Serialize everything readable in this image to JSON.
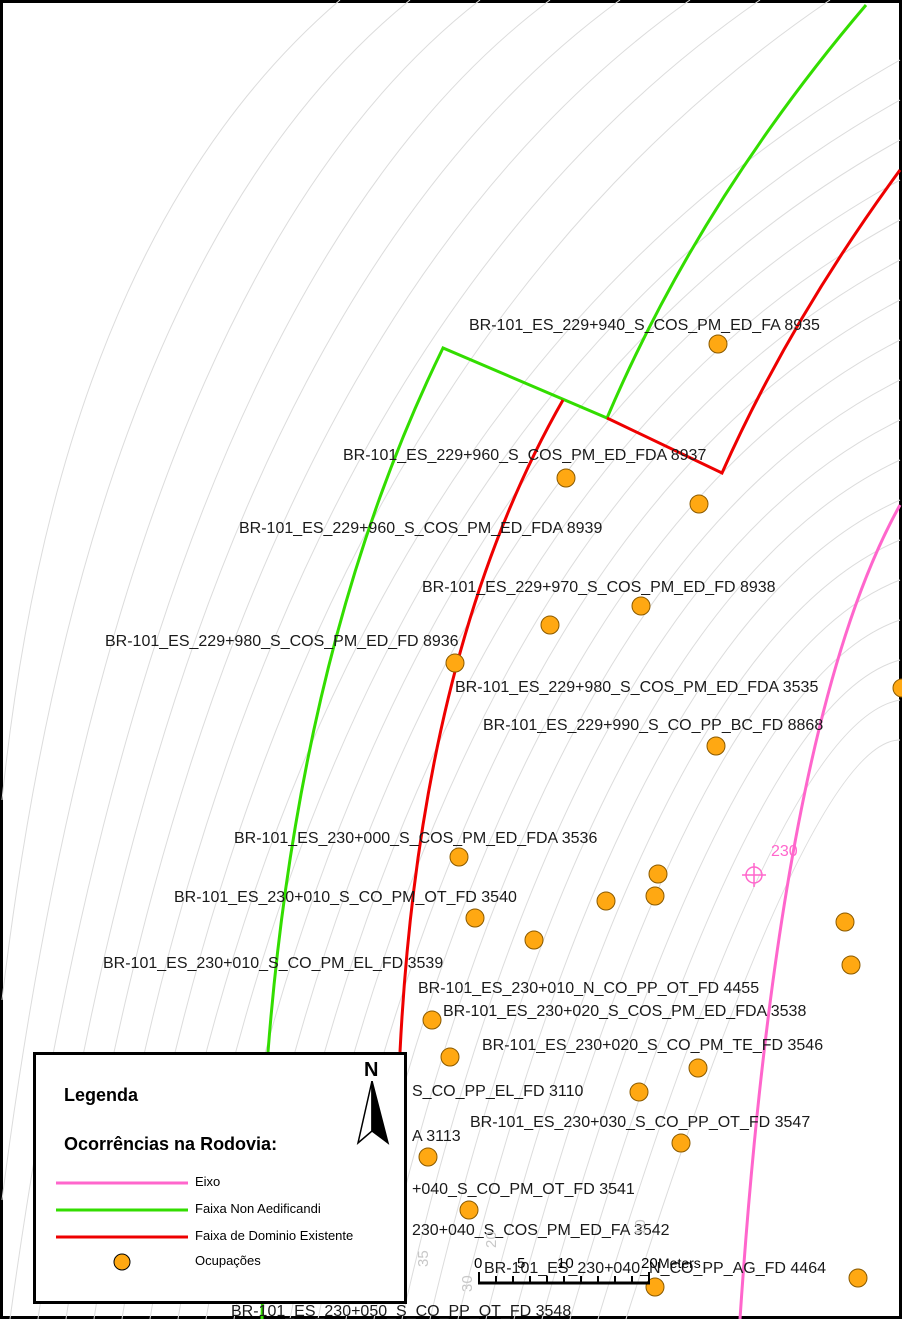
{
  "scale_bar": {
    "ticks": [
      "0",
      "5",
      "10",
      "20"
    ],
    "unit": "Meters"
  },
  "chainage_marker": "230",
  "contour_labels": [
    "35",
    "30",
    "20",
    "10"
  ],
  "occurrences": [
    {
      "label": "BR-101_ES_229+940_S_COS_PM_ED_FA 8935"
    },
    {
      "label": "BR-101_ES_229+960_S_COS_PM_ED_FDA 8937"
    },
    {
      "label": "BR-101_ES_229+960_S_COS_PM_ED_FDA 8939"
    },
    {
      "label": "BR-101_ES_229+970_S_COS_PM_ED_FD 8938"
    },
    {
      "label": "BR-101_ES_229+980_S_COS_PM_ED_FD 8936"
    },
    {
      "label": "BR-101_ES_229+980_S_COS_PM_ED_FDA 3535"
    },
    {
      "label": "BR-101_ES_229+990_S_CO_PP_BC_FD 8868"
    },
    {
      "label": "BR-101_ES_230+000_S_COS_PM_ED_FDA 3536"
    },
    {
      "label": "BR-101_ES_230+010_S_CO_PM_OT_FD 3540"
    },
    {
      "label": "BR-101_ES_230+010_S_CO_PM_EL_FD 3539"
    },
    {
      "label": "BR-101_ES_230+010_N_CO_PP_OT_FD 4455"
    },
    {
      "label": "BR-101_ES_230+020_S_COS_PM_ED_FDA 3538"
    },
    {
      "label": "BR-101_ES_230+020_S_CO_PM_TE_FD 3546"
    },
    {
      "label": "S_CO_PP_EL_FD 3110"
    },
    {
      "label": "A 3113"
    },
    {
      "label": "BR-101_ES_230+030_S_CO_PP_OT_FD 3547"
    },
    {
      "label": "+040_S_CO_PM_OT_FD 3541"
    },
    {
      "label": "230+040_S_COS_PM_ED_FA 3542"
    },
    {
      "label": "BR-101_ES_230+040_N_CO_PP_AG_FD 4464"
    },
    {
      "label": "BR-101_ES_230+050_S_CO_PP_OT_FD 3548"
    }
  ],
  "legend": {
    "title": "Legenda",
    "subtitle": "Ocorrências na Rodovia:",
    "items": [
      {
        "label": "Eixo",
        "color": "#ff66cc"
      },
      {
        "label": "Faixa Non Aedificandi",
        "color": "#33dd00"
      },
      {
        "label": "Faixa de Dominio Existente",
        "color": "#ee0000"
      },
      {
        "label": "Ocupações",
        "color": "#ffa812"
      }
    ]
  },
  "north_arrow": "N",
  "colors": {
    "occupation_fill": "#ffa812",
    "axis": "#ff66cc",
    "non_aedificandi": "#33dd00",
    "dominio": "#ee0000",
    "contour": "#d8d8d8"
  }
}
